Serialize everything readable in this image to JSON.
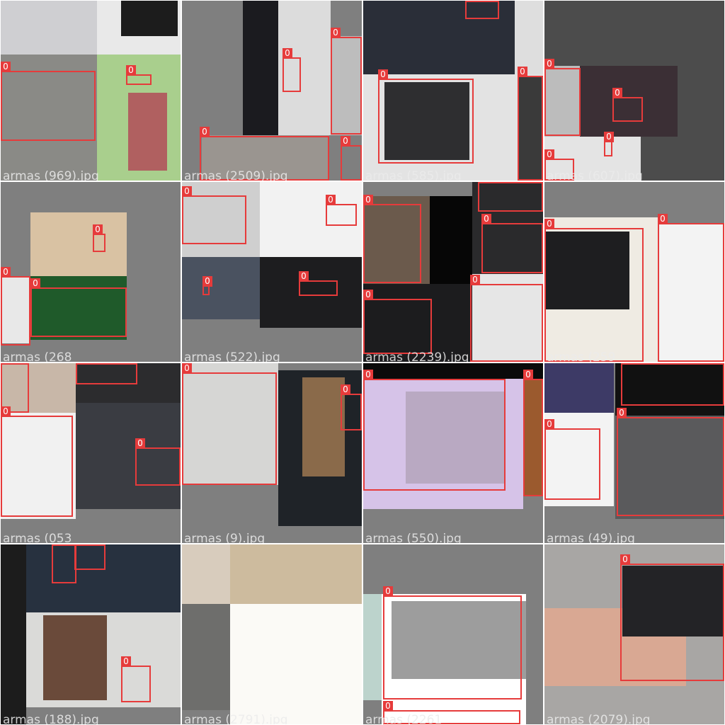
{
  "colors": {
    "box": "#e63b3b",
    "label_bg": "#e63b3b",
    "label_text": "#ffffff",
    "tile_bg": "#7f7f7f",
    "grid_line": "#ffffff"
  },
  "tiles": [
    {
      "caption": "armas (969).jpg"
    },
    {
      "caption": "armas (2509).jpg"
    },
    {
      "caption": "armas (585).jpg"
    },
    {
      "caption": "armas (607).jpg"
    },
    {
      "caption": "armas (268"
    },
    {
      "caption": "armas (522).jpg"
    },
    {
      "caption": "armas (2239).jpg"
    },
    {
      "caption": "armas (259"
    },
    {
      "caption": "armas (053"
    },
    {
      "caption": "armas (9).jpg"
    },
    {
      "caption": "armas (550).jpg"
    },
    {
      "caption": "armas (49).jpg"
    },
    {
      "caption": "armas (188).jpg"
    },
    {
      "caption": "armas (2791).jpg"
    },
    {
      "caption": "armas (2261"
    },
    {
      "caption": "armas (2079).jpg"
    }
  ],
  "box_label": "0"
}
